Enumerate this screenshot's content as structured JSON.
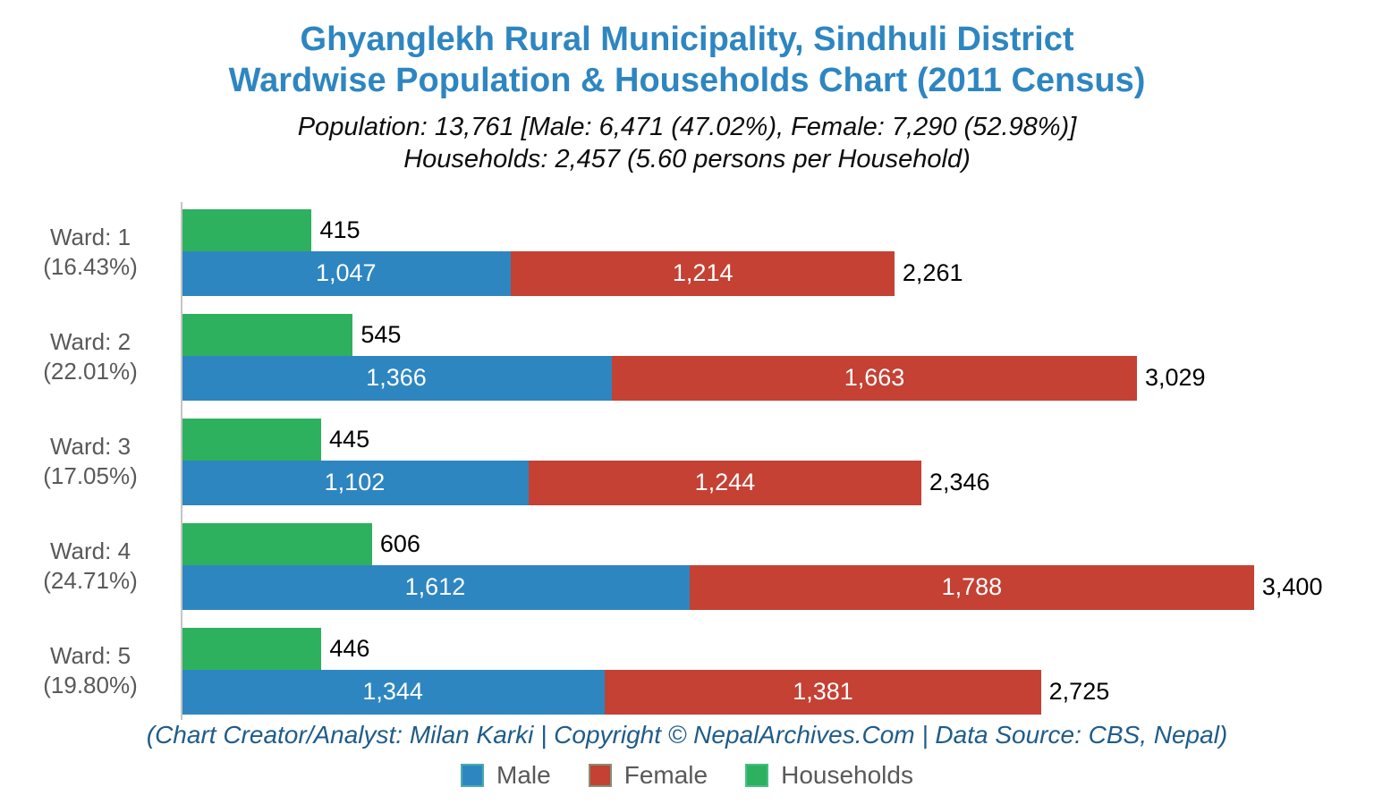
{
  "header": {
    "title_line1": "Ghyanglekh Rural Municipality, Sindhuli District",
    "title_line2": "Wardwise Population & Households Chart (2011 Census)",
    "subtitle_line1": "Population: 13,761 [Male: 6,471 (47.02%), Female: 7,290 (52.98%)]",
    "subtitle_line2": "Households: 2,457 (5.60 persons per Household)"
  },
  "footer": {
    "credit": "(Chart Creator/Analyst: Milan Karki | Copyright © NepalArchives.Com | Data Source: CBS, Nepal)"
  },
  "legend": {
    "male_label": "Male",
    "female_label": "Female",
    "households_label": "Households"
  },
  "chart_data": {
    "type": "bar",
    "orientation": "horizontal",
    "title": "Ghyanglekh Rural Municipality, Sindhuli District — Wardwise Population & Households Chart (2011 Census)",
    "axis_max": 3780,
    "grid": false,
    "legend_position": "bottom",
    "colors": {
      "male": "#2E86C1",
      "female": "#C44134",
      "households": "#2DB15E"
    },
    "categories": [
      "Ward: 1",
      "Ward: 2",
      "Ward: 3",
      "Ward: 4",
      "Ward: 5"
    ],
    "series": [
      {
        "name": "Male",
        "values": [
          1047,
          1366,
          1102,
          1612,
          1344
        ]
      },
      {
        "name": "Female",
        "values": [
          1214,
          1663,
          1244,
          1788,
          1381
        ]
      },
      {
        "name": "Households",
        "values": [
          415,
          545,
          445,
          606,
          446
        ]
      }
    ],
    "totals": [
      2261,
      3029,
      2346,
      3400,
      2725
    ],
    "wards": [
      {
        "label": "Ward: 1",
        "percent": "(16.43%)",
        "households": 415,
        "male": 1047,
        "female": 1214,
        "total": 2261,
        "households_label": "415",
        "male_label": "1,047",
        "female_label": "1,214",
        "total_label": "2,261"
      },
      {
        "label": "Ward: 2",
        "percent": "(22.01%)",
        "households": 545,
        "male": 1366,
        "female": 1663,
        "total": 3029,
        "households_label": "545",
        "male_label": "1,366",
        "female_label": "1,663",
        "total_label": "3,029"
      },
      {
        "label": "Ward: 3",
        "percent": "(17.05%)",
        "households": 445,
        "male": 1102,
        "female": 1244,
        "total": 2346,
        "households_label": "445",
        "male_label": "1,102",
        "female_label": "1,244",
        "total_label": "2,346"
      },
      {
        "label": "Ward: 4",
        "percent": "(24.71%)",
        "households": 606,
        "male": 1612,
        "female": 1788,
        "total": 3400,
        "households_label": "606",
        "male_label": "1,612",
        "female_label": "1,788",
        "total_label": "3,400"
      },
      {
        "label": "Ward: 5",
        "percent": "(19.80%)",
        "households": 446,
        "male": 1344,
        "female": 1381,
        "total": 2725,
        "households_label": "446",
        "male_label": "1,344",
        "female_label": "1,381",
        "total_label": "2,725"
      }
    ]
  }
}
